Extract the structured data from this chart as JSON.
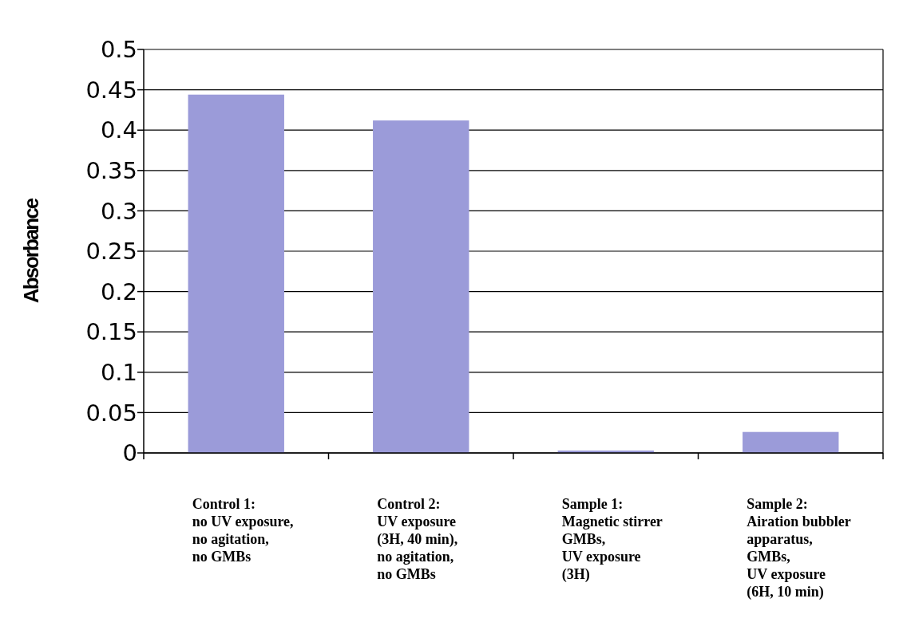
{
  "chart_data": {
    "type": "bar",
    "ylabel": "Absorbance",
    "categories": [
      "Control 1:\nno UV exposure,\nno agitation,\nno GMBs",
      "Control 2:\nUV exposure\n(3H, 40 min),\nno agitation,\nno GMBs",
      "Sample 1:\nMagnetic stirrer\nGMBs,\nUV exposure\n(3H)",
      "Sample 2:\nAiration bubbler\napparatus,\nGMBs,\nUV exposure\n(6H, 10 min)"
    ],
    "values": [
      0.444,
      0.412,
      0.003,
      0.026
    ],
    "color": "#9b9bd9",
    "ylim": [
      0,
      0.5
    ],
    "yticks": [
      0,
      0.05,
      0.1,
      0.15,
      0.2,
      0.25,
      0.3,
      0.35,
      0.4,
      0.45,
      0.5
    ],
    "grid": "y"
  }
}
